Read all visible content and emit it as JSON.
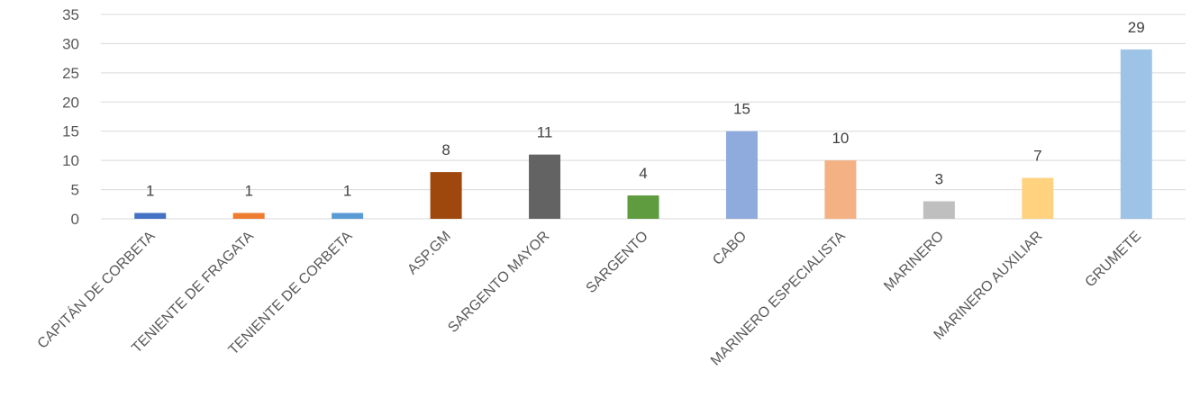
{
  "chart_data": {
    "type": "bar",
    "categories": [
      "CAPITÁN DE CORBETA",
      "TENIENTE DE FRAGATA",
      "TENIENTE DE CORBETA",
      "ASP.GM",
      "SARGENTO MAYOR",
      "SARGENTO",
      "CABO",
      "MARINERO ESPECIALISTA",
      "MARINERO",
      "MARINERO AUXILIAR",
      "GRUMETE"
    ],
    "values": [
      1,
      1,
      1,
      8,
      11,
      4,
      15,
      10,
      3,
      7,
      29
    ],
    "colors": [
      "#4472c4",
      "#ed7d31",
      "#5b9bd5",
      "#9e480e",
      "#636363",
      "#5f9b3f",
      "#8faadc",
      "#f4b183",
      "#bfbfbf",
      "#ffd280",
      "#9dc3e6"
    ],
    "ylim": [
      0,
      35
    ],
    "yticks": [
      0,
      5,
      10,
      15,
      20,
      25,
      30,
      35
    ],
    "grid": true,
    "data_labels": true,
    "title": "",
    "xlabel": "",
    "ylabel": ""
  }
}
